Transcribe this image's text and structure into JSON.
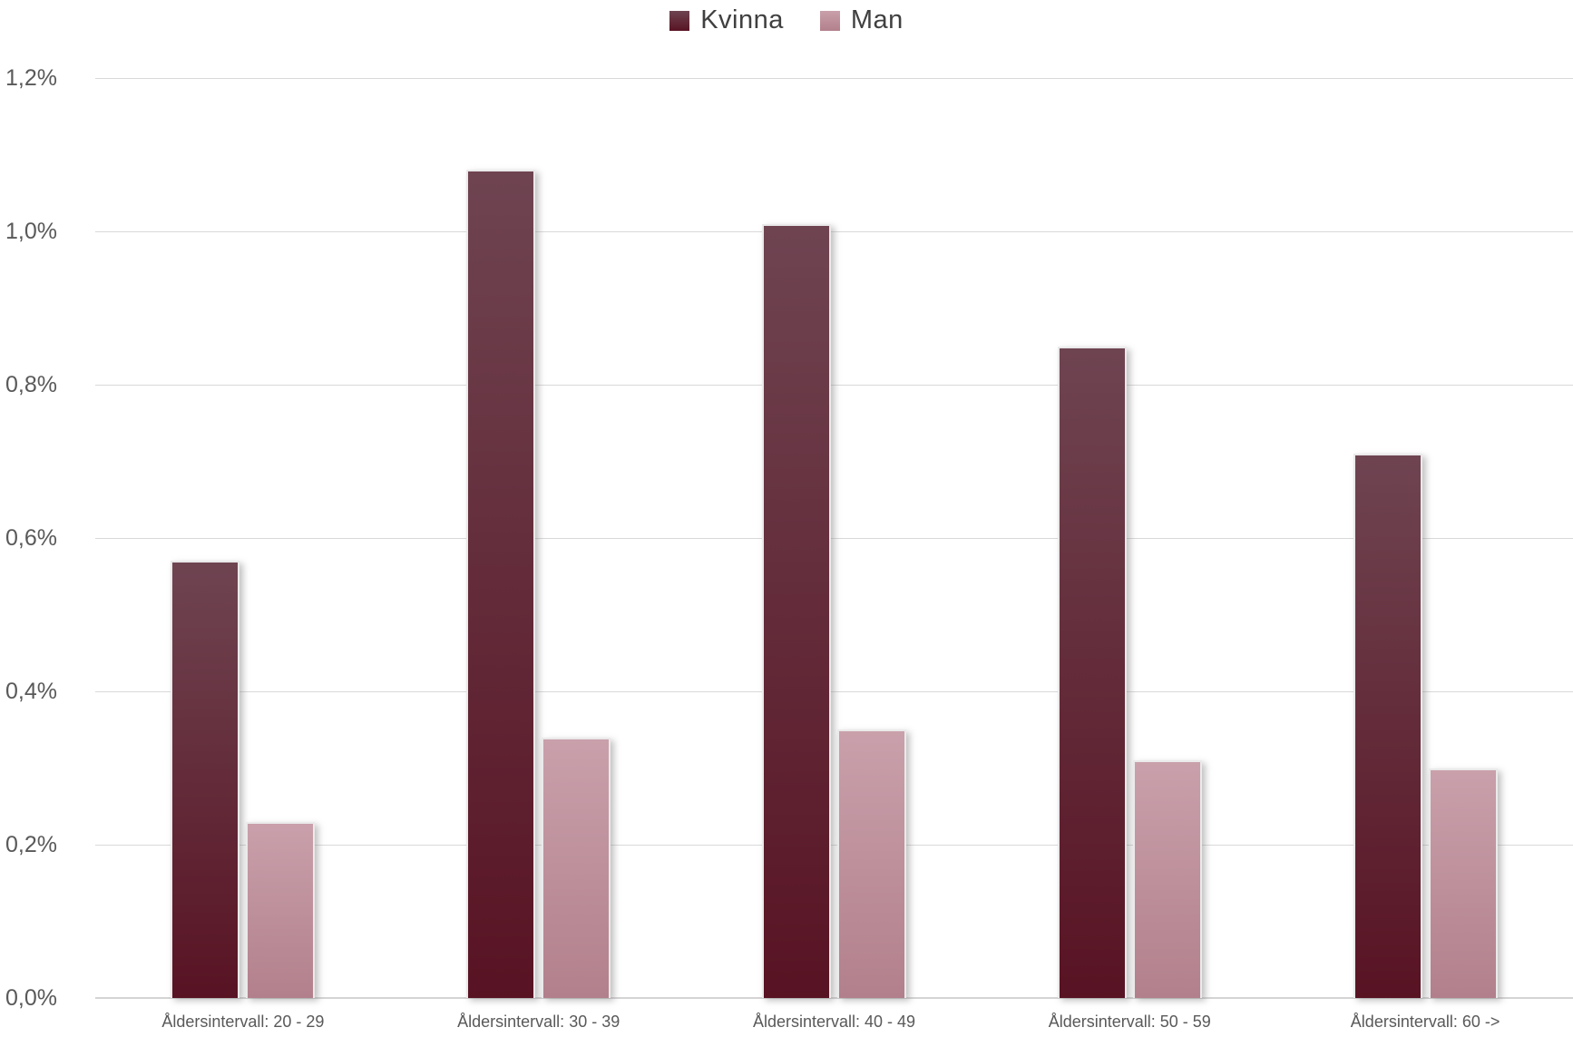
{
  "chart_data": {
    "type": "bar",
    "title": "",
    "xlabel": "",
    "ylabel": "",
    "categories": [
      "Åldersintervall: 20 - 29",
      "Åldersintervall: 30 - 39",
      "Åldersintervall: 40 - 49",
      "Åldersintervall: 50 - 59",
      "Åldersintervall: 60 ->"
    ],
    "series": [
      {
        "name": "Kvinna",
        "values": [
          0.57,
          1.08,
          1.01,
          0.85,
          0.71
        ],
        "color_top": "#6F4451",
        "color_bottom": "#581323"
      },
      {
        "name": "Man",
        "values": [
          0.23,
          0.34,
          0.35,
          0.31,
          0.3
        ],
        "color_top": "#C9A0AB",
        "color_bottom": "#B2808C"
      }
    ],
    "unit": "%",
    "ylim": [
      0,
      1.2
    ],
    "ytick_step": 0.2,
    "ytick_labels": [
      "0,0%",
      "0,2%",
      "0,4%",
      "0,6%",
      "0,8%",
      "1,0%",
      "1,2%"
    ],
    "grid": true,
    "legend_position": "top-center"
  },
  "colors": {
    "background": "#FFFFFF",
    "gridline": "#D9D9D9",
    "axis_line": "#D4D4D4",
    "axis_text": "#595959",
    "legend_text": "#404040"
  }
}
